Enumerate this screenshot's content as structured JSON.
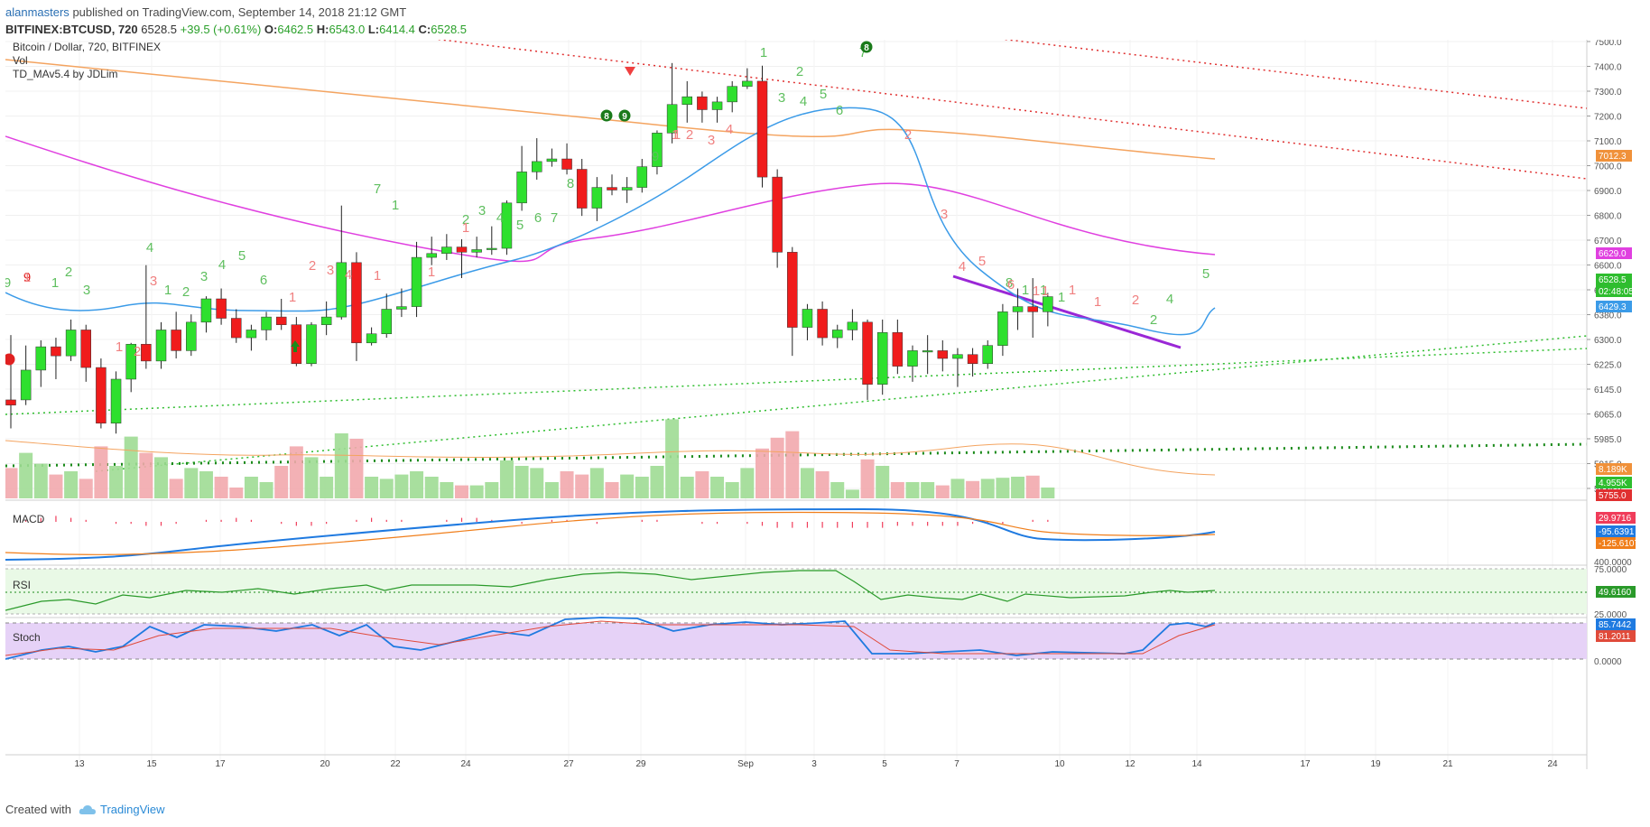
{
  "header": {
    "author": "alanmasters",
    "published_text": "published on TradingView.com, September 14, 2018 21:12 GMT",
    "symbol": "BITFINEX:BTCUSD, 720",
    "price": "6528.5",
    "change": "+39.5 (+0.61%)",
    "o_label": "O:",
    "o_value": "6462.5",
    "h_label": "H:",
    "h_value": "6543.0",
    "l_label": "L:",
    "l_value": "6414.4",
    "c_label": "C:",
    "c_value": "6528.5"
  },
  "footer": {
    "created_with": "Created with",
    "brand": "TradingView"
  },
  "chart_data": {
    "type": "candlestick",
    "title": "Bitcoin / Dollar, 720, BITFINEX",
    "legend": [
      "Vol",
      "TD_MAv5.4 by JDLim"
    ],
    "price_axis": {
      "ticks": [
        "7500.0",
        "7400.0",
        "7300.0",
        "7200.0",
        "7100.0",
        "7000.0",
        "6900.0",
        "6800.0",
        "6700.0",
        "6600.0",
        "6500.0",
        "6380.0",
        "6300.0",
        "6225.0",
        "6145.0",
        "6065.0",
        "5985.0",
        "5915.0",
        "5835.0"
      ],
      "ylim": [
        5750,
        7520
      ]
    },
    "x_axis_ticks": [
      "13",
      "15",
      "17",
      "20",
      "22",
      "24",
      "27",
      "29",
      "Sep",
      "3",
      "5",
      "7",
      "10",
      "12",
      "14",
      "17",
      "19",
      "21",
      "24"
    ],
    "candles": [
      {
        "o": 6130,
        "h": 6380,
        "l": 6020,
        "c": 6110
      },
      {
        "o": 6130,
        "h": 6340,
        "l": 6110,
        "c": 6245
      },
      {
        "o": 6245,
        "h": 6360,
        "l": 6180,
        "c": 6335
      },
      {
        "o": 6335,
        "h": 6370,
        "l": 6210,
        "c": 6300
      },
      {
        "o": 6300,
        "h": 6440,
        "l": 6280,
        "c": 6400
      },
      {
        "o": 6400,
        "h": 6420,
        "l": 6200,
        "c": 6255
      },
      {
        "o": 6255,
        "h": 6290,
        "l": 6020,
        "c": 6040
      },
      {
        "o": 6040,
        "h": 6240,
        "l": 6000,
        "c": 6210
      },
      {
        "o": 6210,
        "h": 6350,
        "l": 6160,
        "c": 6345
      },
      {
        "o": 6345,
        "h": 6650,
        "l": 6250,
        "c": 6280
      },
      {
        "o": 6280,
        "h": 6430,
        "l": 6250,
        "c": 6400
      },
      {
        "o": 6400,
        "h": 6470,
        "l": 6290,
        "c": 6320
      },
      {
        "o": 6320,
        "h": 6460,
        "l": 6300,
        "c": 6430
      },
      {
        "o": 6430,
        "h": 6530,
        "l": 6390,
        "c": 6520
      },
      {
        "o": 6520,
        "h": 6560,
        "l": 6420,
        "c": 6445
      },
      {
        "o": 6445,
        "h": 6480,
        "l": 6350,
        "c": 6370
      },
      {
        "o": 6370,
        "h": 6420,
        "l": 6320,
        "c": 6400
      },
      {
        "o": 6400,
        "h": 6470,
        "l": 6360,
        "c": 6450
      },
      {
        "o": 6450,
        "h": 6520,
        "l": 6400,
        "c": 6420
      },
      {
        "o": 6420,
        "h": 6450,
        "l": 6260,
        "c": 6270
      },
      {
        "o": 6270,
        "h": 6430,
        "l": 6260,
        "c": 6420
      },
      {
        "o": 6420,
        "h": 6510,
        "l": 6380,
        "c": 6450
      },
      {
        "o": 6450,
        "h": 6880,
        "l": 6440,
        "c": 6660
      },
      {
        "o": 6660,
        "h": 6700,
        "l": 6280,
        "c": 6350
      },
      {
        "o": 6350,
        "h": 6410,
        "l": 6340,
        "c": 6385
      },
      {
        "o": 6385,
        "h": 6540,
        "l": 6370,
        "c": 6480
      },
      {
        "o": 6480,
        "h": 6560,
        "l": 6450,
        "c": 6490
      },
      {
        "o": 6490,
        "h": 6740,
        "l": 6450,
        "c": 6680
      },
      {
        "o": 6680,
        "h": 6760,
        "l": 6650,
        "c": 6695
      },
      {
        "o": 6695,
        "h": 6770,
        "l": 6670,
        "c": 6720
      },
      {
        "o": 6720,
        "h": 6750,
        "l": 6600,
        "c": 6700
      },
      {
        "o": 6700,
        "h": 6760,
        "l": 6680,
        "c": 6710
      },
      {
        "o": 6710,
        "h": 6800,
        "l": 6690,
        "c": 6715
      },
      {
        "o": 6715,
        "h": 6900,
        "l": 6690,
        "c": 6890
      },
      {
        "o": 6890,
        "h": 7110,
        "l": 6860,
        "c": 7010
      },
      {
        "o": 7010,
        "h": 7140,
        "l": 6980,
        "c": 7050
      },
      {
        "o": 7050,
        "h": 7100,
        "l": 7030,
        "c": 7060
      },
      {
        "o": 7060,
        "h": 7120,
        "l": 7000,
        "c": 7020
      },
      {
        "o": 7020,
        "h": 7060,
        "l": 6840,
        "c": 6870
      },
      {
        "o": 6870,
        "h": 6990,
        "l": 6820,
        "c": 6950
      },
      {
        "o": 6950,
        "h": 7000,
        "l": 6920,
        "c": 6940
      },
      {
        "o": 6940,
        "h": 6990,
        "l": 6890,
        "c": 6950
      },
      {
        "o": 6950,
        "h": 7060,
        "l": 6930,
        "c": 7030
      },
      {
        "o": 7030,
        "h": 7170,
        "l": 7000,
        "c": 7160
      },
      {
        "o": 7160,
        "h": 7430,
        "l": 7120,
        "c": 7270
      },
      {
        "o": 7270,
        "h": 7360,
        "l": 7200,
        "c": 7300
      },
      {
        "o": 7300,
        "h": 7320,
        "l": 7200,
        "c": 7250
      },
      {
        "o": 7250,
        "h": 7300,
        "l": 7200,
        "c": 7280
      },
      {
        "o": 7280,
        "h": 7360,
        "l": 7240,
        "c": 7340
      },
      {
        "o": 7340,
        "h": 7410,
        "l": 7330,
        "c": 7360
      },
      {
        "o": 7360,
        "h": 7420,
        "l": 6950,
        "c": 6990
      },
      {
        "o": 6990,
        "h": 7020,
        "l": 6640,
        "c": 6700
      },
      {
        "o": 6700,
        "h": 6720,
        "l": 6300,
        "c": 6410
      },
      {
        "o": 6410,
        "h": 6500,
        "l": 6360,
        "c": 6480
      },
      {
        "o": 6480,
        "h": 6510,
        "l": 6340,
        "c": 6370
      },
      {
        "o": 6370,
        "h": 6420,
        "l": 6330,
        "c": 6400
      },
      {
        "o": 6400,
        "h": 6480,
        "l": 6360,
        "c": 6430
      },
      {
        "o": 6430,
        "h": 6440,
        "l": 6130,
        "c": 6190
      },
      {
        "o": 6190,
        "h": 6440,
        "l": 6150,
        "c": 6390
      },
      {
        "o": 6390,
        "h": 6440,
        "l": 6230,
        "c": 6260
      },
      {
        "o": 6260,
        "h": 6340,
        "l": 6200,
        "c": 6320
      },
      {
        "o": 6320,
        "h": 6380,
        "l": 6230,
        "c": 6320
      },
      {
        "o": 6320,
        "h": 6360,
        "l": 6240,
        "c": 6290
      },
      {
        "o": 6290,
        "h": 6330,
        "l": 6180,
        "c": 6305
      },
      {
        "o": 6305,
        "h": 6330,
        "l": 6220,
        "c": 6270
      },
      {
        "o": 6270,
        "h": 6360,
        "l": 6250,
        "c": 6340
      },
      {
        "o": 6340,
        "h": 6500,
        "l": 6300,
        "c": 6470
      },
      {
        "o": 6470,
        "h": 6560,
        "l": 6400,
        "c": 6490
      },
      {
        "o": 6490,
        "h": 6600,
        "l": 6370,
        "c": 6470
      },
      {
        "o": 6470,
        "h": 6543,
        "l": 6414,
        "c": 6528.5
      }
    ],
    "volume": [
      0.28,
      0.42,
      0.32,
      0.22,
      0.25,
      0.18,
      0.48,
      0.3,
      0.57,
      0.42,
      0.38,
      0.18,
      0.28,
      0.25,
      0.2,
      0.1,
      0.2,
      0.15,
      0.3,
      0.48,
      0.38,
      0.2,
      0.6,
      0.55,
      0.2,
      0.18,
      0.22,
      0.25,
      0.2,
      0.15,
      0.12,
      0.12,
      0.15,
      0.35,
      0.3,
      0.28,
      0.15,
      0.25,
      0.22,
      0.28,
      0.15,
      0.22,
      0.2,
      0.3,
      0.73,
      0.2,
      0.25,
      0.2,
      0.15,
      0.28,
      0.46,
      0.56,
      0.62,
      0.28,
      0.25,
      0.15,
      0.08,
      0.36,
      0.3,
      0.15,
      0.15,
      0.15,
      0.12,
      0.18,
      0.16,
      0.18,
      0.19,
      0.2,
      0.21,
      0.1
    ],
    "series": [
      {
        "name": "MA 200",
        "values": [
          7450,
          7050,
          7012.3
        ]
      },
      {
        "name": "MA 50",
        "values": [
          7000,
          6900,
          6629.0
        ]
      },
      {
        "name": "MA 8",
        "values": [
          6429.3
        ]
      }
    ],
    "price_labels": [
      {
        "text": "7012.3",
        "color": "#f0913a"
      },
      {
        "text": "6629.0",
        "color": "#e040e0"
      },
      {
        "text": "6528.5",
        "color": "#2ebd2e"
      },
      {
        "text": "02:48:05",
        "color": "#2ebd2e"
      },
      {
        "text": "6429.3",
        "color": "#3b9be8"
      },
      {
        "text": "8.189K",
        "color": "#f0913a"
      },
      {
        "text": "4.955K",
        "color": "#2ebd2e"
      },
      {
        "text": "5755.0",
        "color": "#e03030"
      }
    ],
    "td_counts": {
      "green": [
        "9",
        "1",
        "2",
        "3",
        "4",
        "1",
        "2",
        "3",
        "4",
        "5",
        "6",
        "7",
        "1",
        "2",
        "3",
        "4",
        "5",
        "6",
        "7",
        "8",
        "9",
        "1",
        "2",
        "3",
        "4",
        "5",
        "6",
        "7",
        "8",
        "1",
        "1",
        "1",
        "2",
        "4",
        "5"
      ],
      "red": [
        "9",
        "1",
        "2",
        "3",
        "1",
        "2",
        "3",
        "4",
        "1",
        "1",
        "1",
        "1",
        "2",
        "3",
        "4",
        "1",
        "2",
        "3",
        "4",
        "5",
        "6",
        "1",
        "1",
        "1",
        "1",
        "2",
        "1"
      ]
    },
    "macd": {
      "label": "MACD",
      "values": [
        "29.9716",
        "-95.6391",
        "-125.6107"
      ],
      "ticks": [
        "400.0000"
      ]
    },
    "rsi": {
      "label": "RSI",
      "value": "49.6160",
      "ticks": [
        "75.0000",
        "25.0000"
      ]
    },
    "stoch": {
      "label": "Stoch",
      "values": [
        "85.7442",
        "81.2011"
      ],
      "ticks": [
        "0.0000"
      ]
    }
  }
}
